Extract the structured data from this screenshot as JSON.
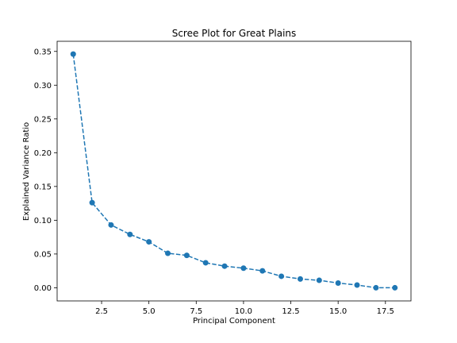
{
  "chart_data": {
    "type": "line",
    "title": "Scree Plot for Great Plains",
    "xlabel": "Principal Component",
    "ylabel": "Explained Variance Ratio",
    "xlim": [
      0.15,
      18.85
    ],
    "ylim": [
      -0.0195,
      0.365
    ],
    "xticks": [
      2.5,
      5.0,
      7.5,
      10.0,
      12.5,
      15.0,
      17.5
    ],
    "xtick_labels": [
      "2.5",
      "5.0",
      "7.5",
      "10.0",
      "12.5",
      "15.0",
      "17.5"
    ],
    "yticks": [
      0.0,
      0.05,
      0.1,
      0.15,
      0.2,
      0.25,
      0.3,
      0.35
    ],
    "ytick_labels": [
      "0.00",
      "0.05",
      "0.10",
      "0.15",
      "0.20",
      "0.25",
      "0.30",
      "0.35"
    ],
    "grid": false,
    "line_style": "dashed",
    "marker": "circle",
    "color": "#1f77b4",
    "series": [
      {
        "x": [
          1,
          2,
          3,
          4,
          5,
          6,
          7,
          8,
          9,
          10,
          11,
          12,
          13,
          14,
          15,
          16,
          17,
          18
        ],
        "values": [
          0.346,
          0.126,
          0.093,
          0.079,
          0.068,
          0.051,
          0.048,
          0.037,
          0.032,
          0.029,
          0.025,
          0.017,
          0.013,
          0.011,
          0.007,
          0.004,
          0.0,
          0.0
        ]
      }
    ]
  }
}
